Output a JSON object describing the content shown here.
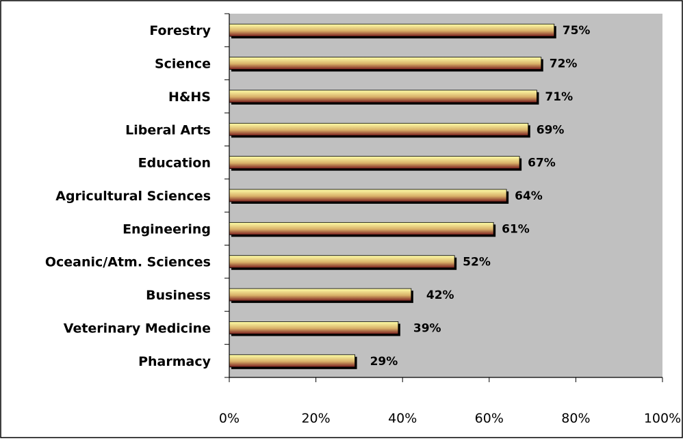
{
  "chart_data": {
    "type": "bar",
    "orientation": "horizontal",
    "categories": [
      "Forestry",
      "Science",
      "H&HS",
      "Liberal Arts",
      "Education",
      "Agricultural Sciences",
      "Engineering",
      "Oceanic/Atm. Sciences",
      "Business",
      "Veterinary Medicine",
      "Pharmacy"
    ],
    "values": [
      75,
      72,
      71,
      69,
      67,
      64,
      61,
      52,
      42,
      39,
      29
    ],
    "value_labels": [
      "75%",
      "72%",
      "71%",
      "69%",
      "67%",
      "64%",
      "61%",
      "52%",
      "42%",
      "39%",
      "29%"
    ],
    "xlim": [
      0,
      100
    ],
    "x_ticks": [
      0,
      20,
      40,
      60,
      80,
      100
    ],
    "x_tick_labels": [
      "0%",
      "20%",
      "40%",
      "60%",
      "80%",
      "100%"
    ],
    "grid": false,
    "legend": "none",
    "colors": {
      "plot_background": "#c0c0c0",
      "bar_light": "#ffffa8",
      "bar_mid": "#d8b068",
      "bar_dark": "#7a1f1f",
      "bar_shadow": "#000000"
    }
  }
}
